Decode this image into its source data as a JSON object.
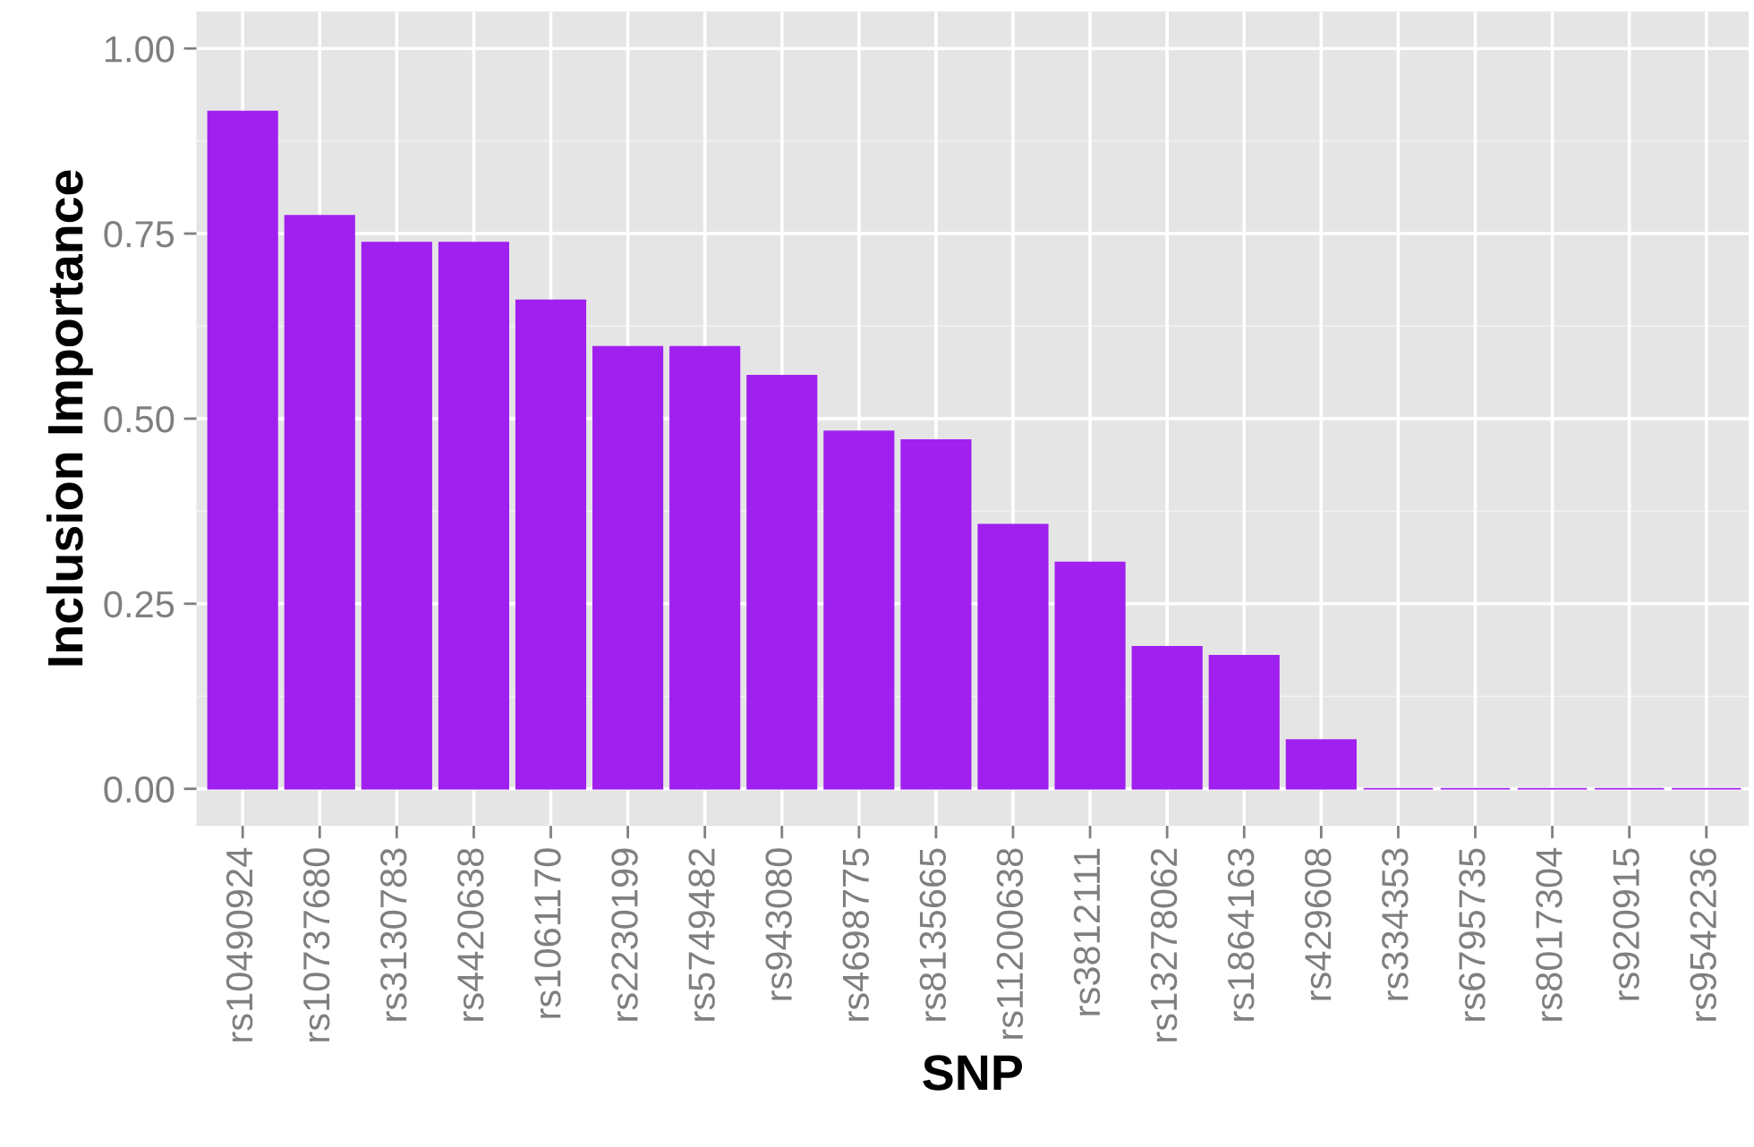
{
  "chart_data": {
    "type": "bar",
    "xlabel": "SNP",
    "ylabel": "Inclusion Importance",
    "categories": [
      "rs10490924",
      "rs10737680",
      "rs3130783",
      "rs4420638",
      "rs1061170",
      "rs2230199",
      "rs5749482",
      "rs943080",
      "rs4698775",
      "rs8135665",
      "rs11200638",
      "rs3812111",
      "rs13278062",
      "rs1864163",
      "rs429608",
      "rs334353",
      "rs6795735",
      "rs8017304",
      "rs920915",
      "rs9542236"
    ],
    "values": [
      0.915,
      0.774,
      0.738,
      0.738,
      0.66,
      0.597,
      0.597,
      0.558,
      0.483,
      0.471,
      0.357,
      0.306,
      0.192,
      0.18,
      0.066,
      0,
      0,
      0,
      0,
      0
    ],
    "color": "#a020f0",
    "ylim": [
      -0.05,
      1.05
    ],
    "yticks": [
      {
        "value": 0,
        "label": "0.00"
      },
      {
        "value": 0.25,
        "label": "0.25"
      },
      {
        "value": 0.5,
        "label": "0.50"
      },
      {
        "value": 0.75,
        "label": "0.75"
      },
      {
        "value": 1,
        "label": "1.00"
      }
    ],
    "grid": true
  }
}
